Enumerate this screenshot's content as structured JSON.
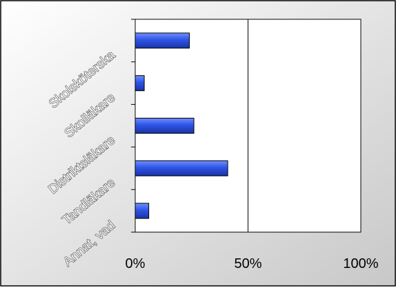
{
  "chart_data": {
    "type": "bar",
    "orientation": "horizontal",
    "categories": [
      "Skolsköterska",
      "Skolläkare",
      "Distriktsläkare",
      "Tandläkare",
      "Annat, vad"
    ],
    "values": [
      24,
      4,
      26,
      41,
      6
    ],
    "xlim": [
      0,
      100
    ],
    "x_ticks": [
      {
        "value": 0,
        "label": "0%"
      },
      {
        "value": 50,
        "label": "50%"
      },
      {
        "value": 100,
        "label": "100%"
      }
    ],
    "gridlines": [
      50
    ],
    "legend": "none",
    "colors": {
      "bar_light": "#6f8fff",
      "bar_mid": "#2f55e6",
      "bar_dark": "#1a33a8",
      "bar_outline": "#000000",
      "plot_bg": "#ffffff",
      "frame_light": "#ffffff",
      "frame_dark": "#c8c8c8"
    }
  }
}
